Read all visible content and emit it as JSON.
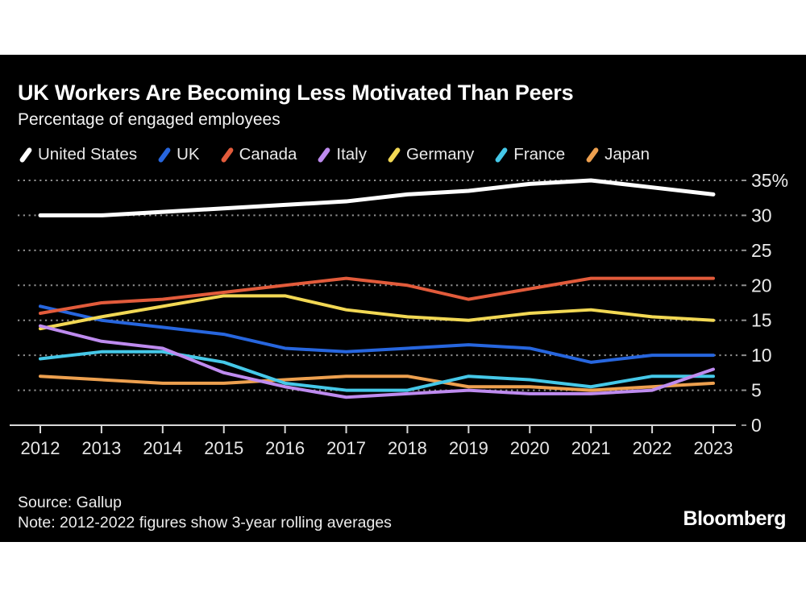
{
  "theme": {
    "background": "#000000",
    "card_background": "#000000",
    "text_color": "#ffffff",
    "grid_color": "#8f8f8f",
    "axis_color": "#d9d9d9"
  },
  "chart_data": {
    "type": "line",
    "title": "UK Workers Are Becoming Less Motivated Than Peers",
    "subtitle": "Percentage of engaged employees",
    "categories": [
      "2012",
      "2013",
      "2014",
      "2015",
      "2016",
      "2017",
      "2018",
      "2019",
      "2020",
      "2021",
      "2022",
      "2023"
    ],
    "series": [
      {
        "name": "United States",
        "color": "#ffffff",
        "values": [
          30,
          30,
          30.5,
          31,
          31.5,
          32,
          33,
          33.5,
          34.5,
          35,
          34,
          33
        ]
      },
      {
        "name": "UK",
        "color": "#2766de",
        "values": [
          17,
          15,
          14,
          13,
          11,
          10.5,
          11,
          11.5,
          11,
          9,
          10,
          10
        ]
      },
      {
        "name": "Canada",
        "color": "#e25b3b",
        "values": [
          16,
          17.5,
          18,
          19,
          20,
          21,
          20,
          18,
          19.5,
          21,
          21,
          21
        ]
      },
      {
        "name": "Italy",
        "color": "#be8bef",
        "values": [
          14.2,
          12,
          11,
          7.5,
          5.5,
          4,
          4.5,
          5,
          4.5,
          4.5,
          5,
          8
        ]
      },
      {
        "name": "Germany",
        "color": "#f2d854",
        "values": [
          13.8,
          15.5,
          17,
          18.5,
          18.5,
          16.5,
          15.5,
          15,
          16,
          16.5,
          15.5,
          15
        ]
      },
      {
        "name": "France",
        "color": "#45c8e8",
        "values": [
          9.5,
          10.5,
          10.5,
          9,
          6,
          5,
          5,
          7,
          6.5,
          5.5,
          7,
          7
        ]
      },
      {
        "name": "Japan",
        "color": "#eda04f",
        "values": [
          7,
          6.5,
          6,
          6,
          6.5,
          7,
          7,
          5.5,
          5.5,
          5,
          5.5,
          6
        ]
      }
    ],
    "draw_order": [
      "United States",
      "UK",
      "Japan",
      "Germany",
      "France",
      "Italy",
      "Canada"
    ],
    "yticks": [
      {
        "label": "35%",
        "value": 35
      },
      {
        "label": "30",
        "value": 30
      },
      {
        "label": "25",
        "value": 25
      },
      {
        "label": "20",
        "value": 20
      },
      {
        "label": "15",
        "value": 15
      },
      {
        "label": "10",
        "value": 10
      },
      {
        "label": "5",
        "value": 5
      },
      {
        "label": "0",
        "value": 0
      }
    ],
    "ylim": [
      0,
      35
    ],
    "grid": "horizontal-dotted",
    "legend_position": "top"
  },
  "footer": {
    "source": "Source: Gallup",
    "note": "Note: 2012-2022 figures show 3-year rolling averages",
    "brand": "Bloomberg"
  }
}
